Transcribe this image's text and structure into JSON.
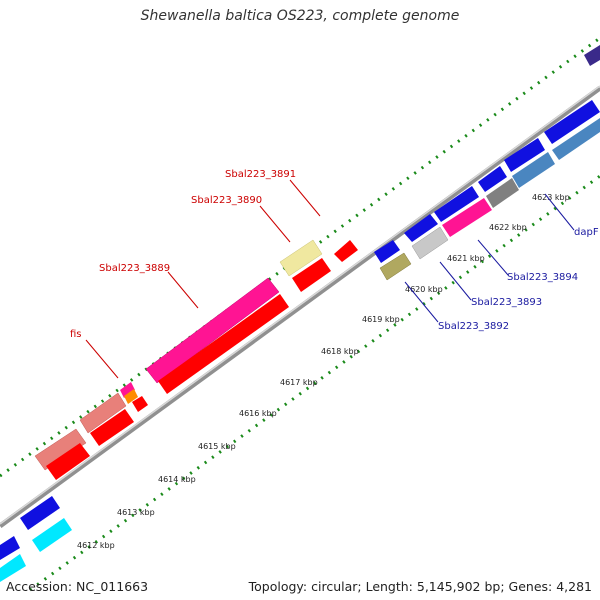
{
  "title": "Shewanella baltica OS223, complete genome",
  "footer": {
    "accession": "Accession: NC_011663",
    "topology": "Topology: circular; Length: 5,145,902 bp; Genes: 4,281"
  },
  "ticks": [
    "4612 kbp",
    "4613 kbp",
    "4614 kbp",
    "4615 kbp",
    "4616 kbp",
    "4617 kbp",
    "4618 kbp",
    "4619 kbp",
    "4620 kbp",
    "4621 kbp",
    "4622 kbp",
    "4623 kbp"
  ],
  "gene_labels": {
    "fis": "fis",
    "s3889": "Sbal223_3889",
    "s3890": "Sbal223_3890",
    "s3891": "Sbal223_3891",
    "s3892": "Sbal223_3892",
    "s3893": "Sbal223_3893",
    "s3894": "Sbal223_3894",
    "dapF": "dapF"
  },
  "colors": {
    "cds": "#ff0000",
    "pink": "#ff1493",
    "salmon": "#e8807a",
    "blue": "#1010e0",
    "steel": "#4a86c0",
    "khaki": "#b0a860",
    "yellow": "#f0e8a0",
    "grey": "#808080",
    "silver": "#c8c8c8",
    "cyan": "#00e8ff",
    "orange": "#ff8c00",
    "purple": "#3a2a8a",
    "dots": "#1a8a1a",
    "backbone": "#909090"
  }
}
